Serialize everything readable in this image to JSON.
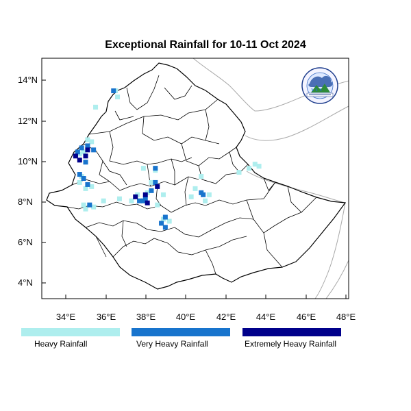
{
  "title": "Exceptional Rainfall for 10-11 Oct 2024",
  "lat_ticks": [
    {
      "value": 14,
      "label": "14°N"
    },
    {
      "value": 12,
      "label": "12°N"
    },
    {
      "value": 10,
      "label": "10°N"
    },
    {
      "value": 8,
      "label": "8°N"
    },
    {
      "value": 6,
      "label": "6°N"
    },
    {
      "value": 4,
      "label": "4°N"
    }
  ],
  "lon_ticks": [
    {
      "value": 34,
      "label": "34°E"
    },
    {
      "value": 36,
      "label": "36°E"
    },
    {
      "value": 38,
      "label": "38°E"
    },
    {
      "value": 40,
      "label": "40°E"
    },
    {
      "value": 42,
      "label": "42°E"
    },
    {
      "value": 44,
      "label": "44°E"
    },
    {
      "value": 46,
      "label": "46°E"
    },
    {
      "value": 48,
      "label": "48°E"
    }
  ],
  "legend": [
    {
      "label": "Heavy Rainfall",
      "color": "#aeeeee"
    },
    {
      "label": "Very Heavy Rainfall",
      "color": "#1874cd"
    },
    {
      "label": "Extremely Heavy Rainfall",
      "color": "#00008b"
    }
  ],
  "logo_text": "Ethiopian Meteorology Institute",
  "map_data": {
    "lon_range": [
      32.8,
      48.2
    ],
    "lat_range": [
      3.2,
      15.0
    ],
    "heavy_rainfall": [
      [
        36.5,
        13.4
      ],
      [
        36.6,
        13.1
      ],
      [
        35.5,
        12.6
      ],
      [
        35.1,
        11.0
      ],
      [
        35.3,
        10.9
      ],
      [
        34.7,
        10.3
      ],
      [
        34.9,
        10.4
      ],
      [
        34.8,
        9.2
      ],
      [
        34.7,
        8.9
      ],
      [
        35.0,
        8.6
      ],
      [
        35.3,
        8.7
      ],
      [
        34.9,
        7.8
      ],
      [
        35.0,
        7.6
      ],
      [
        35.4,
        7.7
      ],
      [
        35.9,
        8.0
      ],
      [
        36.7,
        8.1
      ],
      [
        37.3,
        8.0
      ],
      [
        37.6,
        8.3
      ],
      [
        38.1,
        8.4
      ],
      [
        38.3,
        8.9
      ],
      [
        37.9,
        9.6
      ],
      [
        38.5,
        9.5
      ],
      [
        38.9,
        8.3
      ],
      [
        38.6,
        7.8
      ],
      [
        38.9,
        7.1
      ],
      [
        39.2,
        7.0
      ],
      [
        40.3,
        8.2
      ],
      [
        40.5,
        8.6
      ],
      [
        41.0,
        8.0
      ],
      [
        41.2,
        8.3
      ],
      [
        40.8,
        9.2
      ],
      [
        42.7,
        9.4
      ],
      [
        43.2,
        9.6
      ],
      [
        43.5,
        9.8
      ],
      [
        43.7,
        9.7
      ]
    ],
    "very_heavy_rainfall": [
      [
        36.4,
        13.4
      ],
      [
        34.6,
        10.4
      ],
      [
        34.8,
        10.6
      ],
      [
        35.1,
        10.7
      ],
      [
        35.4,
        10.5
      ],
      [
        35.0,
        9.9
      ],
      [
        34.7,
        9.3
      ],
      [
        34.9,
        9.1
      ],
      [
        35.1,
        8.8
      ],
      [
        35.2,
        7.8
      ],
      [
        37.7,
        8.0
      ],
      [
        38.0,
        8.1
      ],
      [
        38.3,
        8.5
      ],
      [
        38.5,
        8.9
      ],
      [
        38.5,
        9.6
      ],
      [
        37.9,
        8.0
      ],
      [
        38.8,
        6.9
      ],
      [
        39.0,
        7.2
      ],
      [
        39.0,
        6.7
      ],
      [
        40.9,
        8.3
      ],
      [
        40.8,
        8.4
      ]
    ],
    "extremely_heavy_rainfall": [
      [
        34.5,
        10.2
      ],
      [
        34.7,
        10.0
      ],
      [
        35.0,
        10.2
      ],
      [
        35.1,
        10.5
      ],
      [
        37.5,
        8.2
      ],
      [
        38.0,
        8.3
      ],
      [
        38.1,
        7.9
      ],
      [
        38.6,
        8.7
      ]
    ]
  }
}
